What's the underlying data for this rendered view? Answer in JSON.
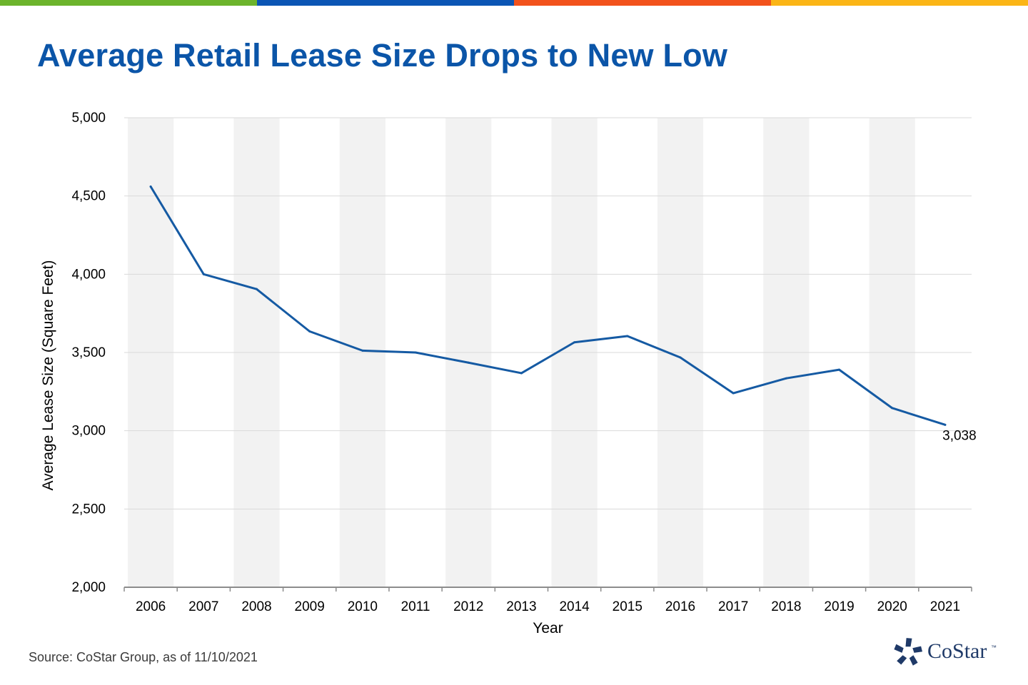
{
  "colors": {
    "stripe": [
      "#6cb42c",
      "#0b55b4",
      "#f2521c",
      "#fbb516"
    ],
    "title": "#0b55a8",
    "line": "#155aa3",
    "band": "#f2f2f2",
    "grid": "#d9d9d9",
    "axis": "#8c8c8c",
    "logo": "#1f3a68"
  },
  "title": "Average Retail Lease Size Drops to New Low",
  "source": "Source: CoStar Group, as of 11/10/2021",
  "logo": {
    "name": "CoStar",
    "mark": "star-icon",
    "tm": "™"
  },
  "chart_data": {
    "type": "line",
    "xlabel": "Year",
    "ylabel": "Average Lease Size (Square Feet)",
    "ylim": [
      2000,
      5000
    ],
    "yticks": [
      2000,
      2500,
      3000,
      3500,
      4000,
      4500,
      5000
    ],
    "ytick_labels": [
      "2,000",
      "2,500",
      "3,000",
      "3,500",
      "4,000",
      "4,500",
      "5,000"
    ],
    "categories": [
      "2006",
      "2007",
      "2008",
      "2009",
      "2010",
      "2011",
      "2012",
      "2013",
      "2014",
      "2015",
      "2016",
      "2017",
      "2018",
      "2019",
      "2020",
      "2021"
    ],
    "series": [
      {
        "values": [
          4560,
          4000,
          3905,
          3635,
          3512,
          3500,
          3435,
          3368,
          3565,
          3605,
          3468,
          3240,
          3335,
          3390,
          3145,
          3038
        ]
      }
    ],
    "data_labels": [
      {
        "index": 15,
        "text": "3,038"
      }
    ],
    "grid": true,
    "alternating_bands": true
  }
}
